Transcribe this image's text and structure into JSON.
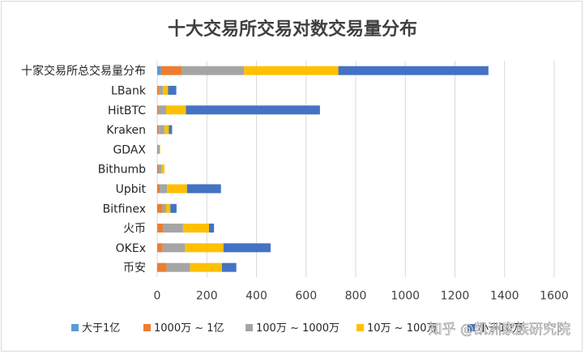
{
  "chart_data": {
    "type": "bar",
    "orientation": "horizontal",
    "stacked": true,
    "title": "十大交易所交易对数交易量分布",
    "categories": [
      "十家交易所总交易量分布",
      "LBank",
      "HitBTC",
      "Kraken",
      "GDAX",
      "Bithumb",
      "Upbit",
      "Bitfinex",
      "火币",
      "OKEx",
      "币安"
    ],
    "series": [
      {
        "name": "大于1亿",
        "color": "#5b9bd5",
        "values": [
          15,
          2,
          1,
          4,
          1,
          1,
          3,
          3,
          2,
          2,
          3
        ]
      },
      {
        "name": "1000万 ~ 1亿",
        "color": "#ed7d31",
        "values": [
          85,
          7,
          5,
          3,
          1,
          4,
          7,
          18,
          22,
          20,
          35
        ]
      },
      {
        "name": "100万 ~ 1000万",
        "color": "#a5a5a5",
        "values": [
          250,
          15,
          30,
          22,
          8,
          14,
          30,
          15,
          80,
          90,
          95
        ]
      },
      {
        "name": "10万 ~ 100万",
        "color": "#ffc000",
        "values": [
          380,
          20,
          80,
          18,
          2,
          10,
          80,
          17,
          105,
          155,
          128
        ]
      },
      {
        "name": "小于10万",
        "color": "#4472c4",
        "values": [
          605,
          33,
          540,
          13,
          0,
          0,
          137,
          25,
          20,
          190,
          58
        ]
      }
    ],
    "xlim": [
      0,
      1600
    ],
    "xticks": [
      "0",
      "200",
      "400",
      "600",
      "800",
      "1000",
      "1200",
      "1400",
      "1600"
    ],
    "grid": true,
    "legend_position": "bottom"
  },
  "watermark": "知乎 @凯洲家族研究院"
}
